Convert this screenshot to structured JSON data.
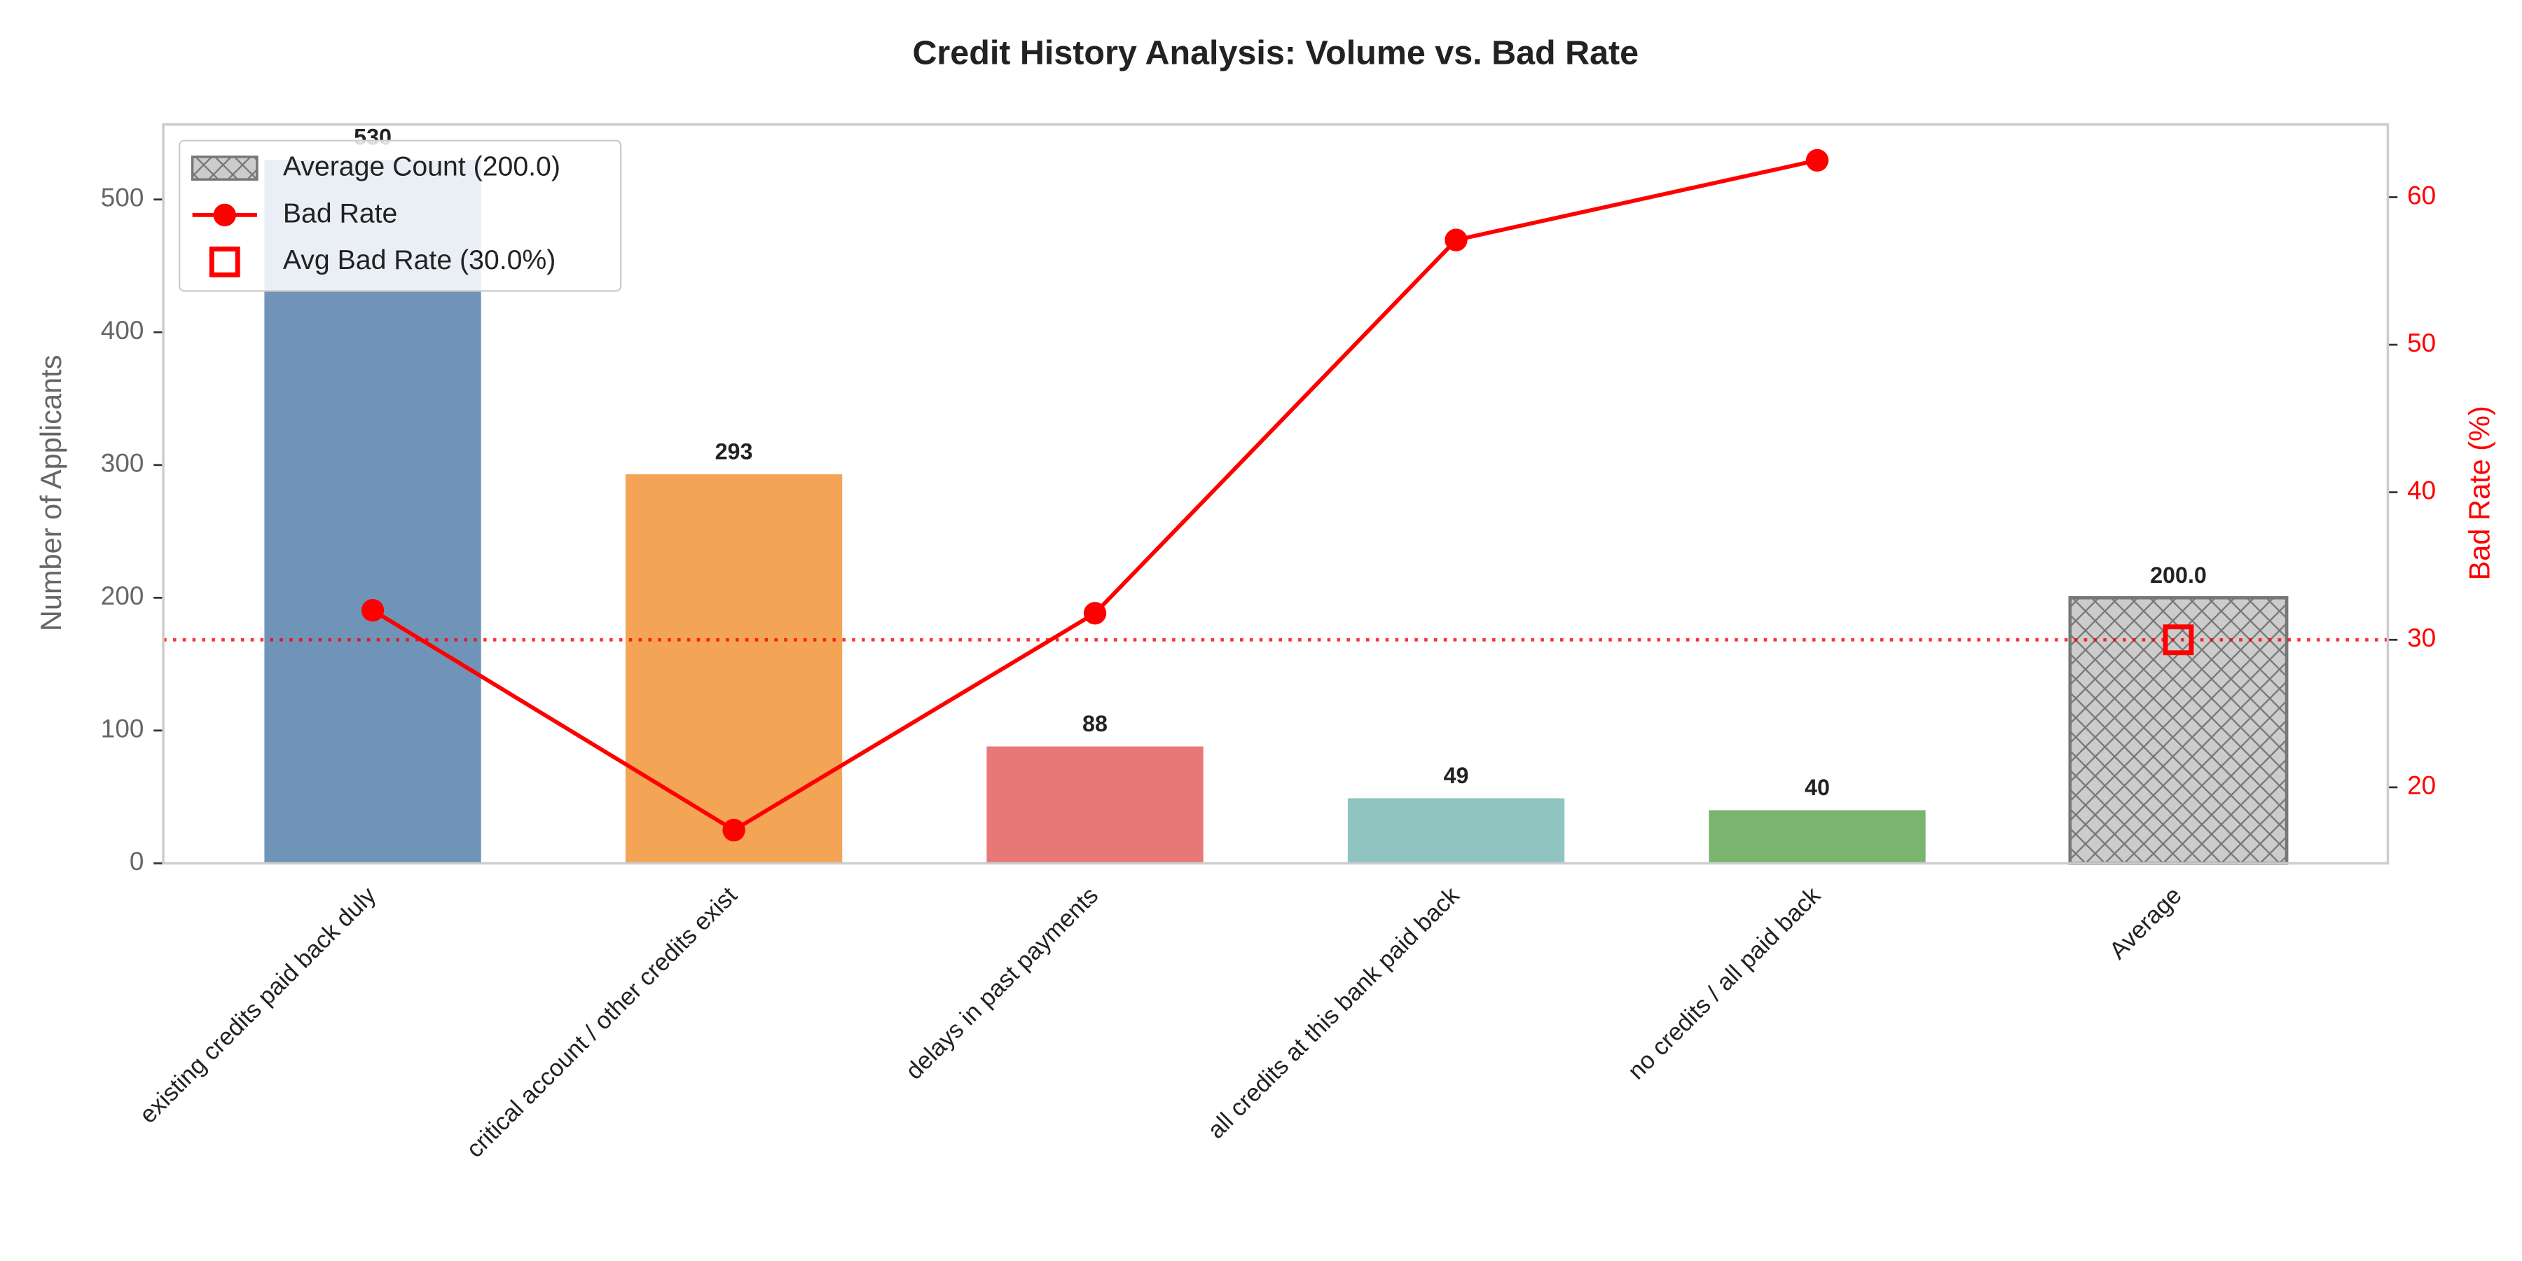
{
  "chart_data": {
    "type": "bar",
    "title": "Credit History Analysis: Volume vs. Bad Rate",
    "ylabel": "Number of Applicants",
    "y2label": "Bad Rate (%)",
    "categories": [
      "existing credits paid back duly",
      "critical account / other credits exist",
      "delays in past payments",
      "all credits at this bank paid back",
      "no credits / all paid back",
      "Average"
    ],
    "series": [
      {
        "name": "Average Count (200.0)",
        "values": [
          530,
          293,
          88,
          49,
          40,
          200.0
        ],
        "value_labels": [
          null,
          null,
          null,
          null,
          null,
          "200.0"
        ],
        "colors": [
          "#7093b8",
          "#f3a455",
          "#e87878",
          "#8fc4c0",
          "#7ab46e",
          "#cccccc"
        ],
        "hatch": [
          false,
          false,
          false,
          false,
          false,
          true
        ]
      },
      {
        "name": "Bad Rate",
        "type": "line",
        "axis": "y2",
        "color": "#ff0000",
        "values": [
          32.0,
          17.1,
          31.8,
          57.1,
          62.5,
          null
        ]
      },
      {
        "name": "Avg Bad Rate (30.0%)",
        "type": "marker",
        "axis": "y2",
        "color": "#ff0000",
        "category_index": 5,
        "value": 30.0,
        "reference_line": true
      }
    ],
    "ylim": [
      0,
      556.5
    ],
    "yticks": [
      0,
      100,
      200,
      300,
      400,
      500
    ],
    "y2lim": [
      14.85,
      64.93
    ],
    "y2ticks": [
      20,
      30,
      40,
      50,
      60
    ],
    "y2color": "#ff0000",
    "grid": false,
    "legend": "upper left"
  }
}
